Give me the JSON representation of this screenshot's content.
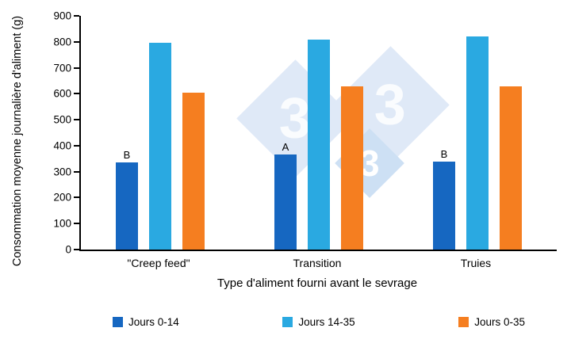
{
  "chart_data": {
    "type": "bar",
    "title": "",
    "ylabel": "Consommation moyenne journalière d'aliment (g)",
    "xlabel": "Type d'aliment fourni avant le sevrage",
    "ylim": [
      0,
      900
    ],
    "ytick_step": 100,
    "grid": false,
    "legend_position": "bottom",
    "categories": [
      "\"Creep feed\"",
      "Transition",
      "Truies"
    ],
    "series": [
      {
        "name": "Jours 0-14",
        "color": "#1667c1",
        "values": [
          335,
          365,
          340
        ]
      },
      {
        "name": "Jours 14-35",
        "color": "#2aa9e1",
        "values": [
          795,
          810,
          820
        ]
      },
      {
        "name": "Jours 0-35",
        "color": "#f57e20",
        "values": [
          605,
          630,
          630
        ]
      }
    ],
    "annotations": [
      {
        "series": "Jours 0-14",
        "labels": [
          "B",
          "A",
          "B"
        ]
      }
    ]
  },
  "watermark": {
    "digit": "3"
  }
}
